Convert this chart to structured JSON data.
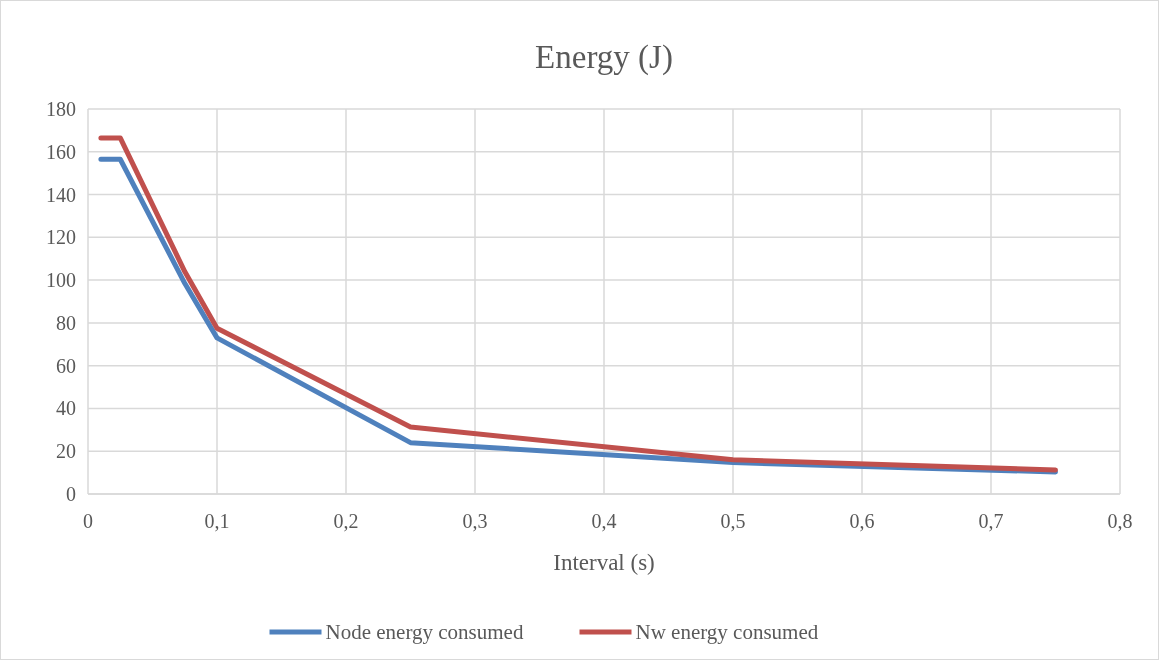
{
  "chart_data": {
    "type": "line",
    "title": "Energy (J)",
    "xlabel": "Interval (s)",
    "x": [
      0.01,
      0.025,
      0.075,
      0.1,
      0.25,
      0.5,
      0.75
    ],
    "series": [
      {
        "name": "Node energy consumed",
        "color": "#4f81bd",
        "values": [
          156.5,
          156.5,
          98.5,
          73,
          24,
          14.7,
          10.3
        ]
      },
      {
        "name": "Nw energy consumed",
        "color": "#c0504d",
        "values": [
          166.5,
          166.5,
          104,
          77.5,
          31.3,
          16,
          11.2
        ]
      }
    ],
    "xlim": [
      0,
      0.8
    ],
    "xticks": [
      {
        "value": 0,
        "label": "0"
      },
      {
        "value": 0.1,
        "label": "0,1"
      },
      {
        "value": 0.2,
        "label": "0,2"
      },
      {
        "value": 0.3,
        "label": "0,3"
      },
      {
        "value": 0.4,
        "label": "0,4"
      },
      {
        "value": 0.5,
        "label": "0,5"
      },
      {
        "value": 0.6,
        "label": "0,6"
      },
      {
        "value": 0.7,
        "label": "0,7"
      },
      {
        "value": 0.8,
        "label": "0,8"
      }
    ],
    "ylim": [
      0,
      180
    ],
    "yticks": [
      0,
      20,
      40,
      60,
      80,
      100,
      120,
      140,
      160,
      180
    ],
    "grid": true,
    "legend": "bottom",
    "marker": "none",
    "line_style": "solid"
  }
}
